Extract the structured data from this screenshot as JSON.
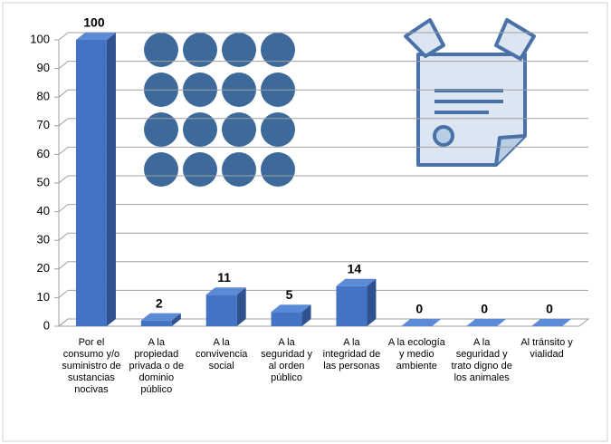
{
  "chart_data": {
    "type": "bar3d",
    "categories": [
      "Por el consumo y/o suministro de sustancias nocivas",
      "A la propiedad privada o de dominio público",
      "A la convivencia social",
      "A la seguridad y al orden público",
      "A la integridad de las personas",
      "A la ecología y medio ambiente",
      "A la seguridad y trato digno de los animales",
      "Al tránsito y vialidad"
    ],
    "values": [
      100,
      2,
      11,
      5,
      14,
      0,
      0,
      0
    ],
    "color": "#4472c4",
    "ylim": [
      0,
      100
    ],
    "yticks": [
      0,
      10,
      20,
      30,
      40,
      50,
      60,
      70,
      80,
      90,
      100
    ],
    "grid": true
  }
}
